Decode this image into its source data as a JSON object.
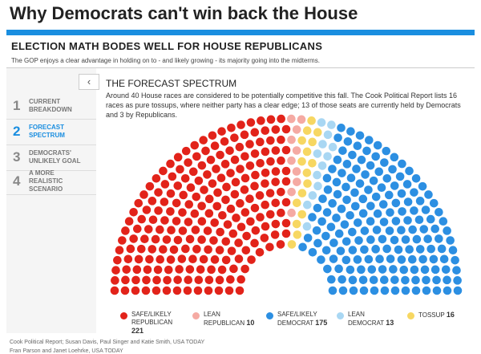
{
  "page_title": "Why Democrats can't win back the House",
  "header": {
    "title": "ELECTION MATH BODES WELL FOR HOUSE REPUBLICANS",
    "subtitle": "The GOP enjoys a clear advantage in holding on to - and likely growing - its majority going into the midterms."
  },
  "nav": [
    {
      "number": "1",
      "label": "CURRENT BREAKDOWN"
    },
    {
      "number": "2",
      "label": "FORECAST SPECTRUM"
    },
    {
      "number": "3",
      "label": "DEMOCRATS' UNLIKELY GOAL"
    },
    {
      "number": "4",
      "label": "A MORE REALISTIC SCENARIO"
    }
  ],
  "section": {
    "title": "THE FORECAST SPECTRUM",
    "text": "Around 40 House races are considered to be potentially competitive this fall. The Cook Political Report lists 16 races as pure tossups, where neither party has a clear edge; 13 of those seats are currently held by Democrats and 3 by Republicans."
  },
  "chart_data": {
    "type": "parliament",
    "categories": [
      "SAFE/LIKELY REPUBLICAN",
      "LEAN REPUBLICAN",
      "TOSSUP",
      "LEAN DEMOCRAT",
      "SAFE/LIKELY DEMOCRAT"
    ],
    "values": [
      221,
      10,
      16,
      13,
      175
    ],
    "colors": [
      "#e2231a",
      "#f5aaa3",
      "#f7d762",
      "#a9d7f3",
      "#2c8fe2"
    ]
  },
  "footer": [
    "Cook Political Report; Susan Davis, Paul Singer and Katie Smith, USA TODAY",
    "Fran Parson and Janet Loehrke, USA TODAY"
  ]
}
